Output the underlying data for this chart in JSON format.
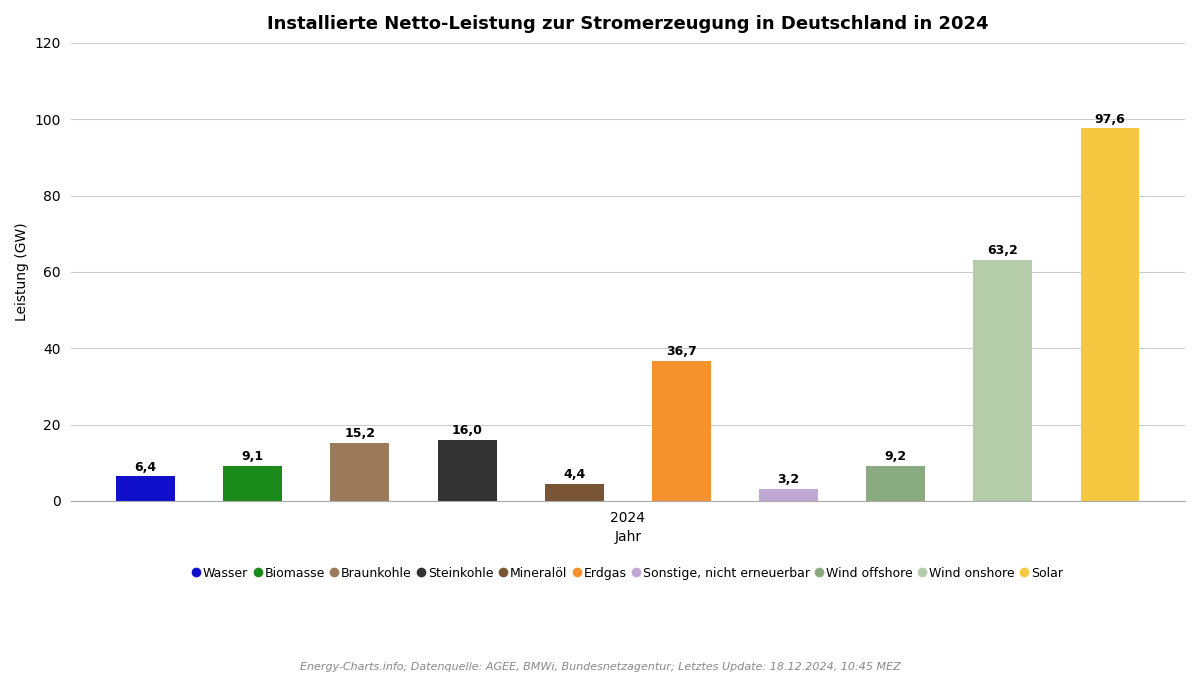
{
  "title": "Installierte Netto-Leistung zur Stromerzeugung in Deutschland in 2024",
  "xlabel": "Jahr",
  "ylabel": "Leistung (GW)",
  "xtick_label": "2024",
  "ylim": [
    0,
    120
  ],
  "yticks": [
    0,
    20,
    40,
    60,
    80,
    100,
    120
  ],
  "categories": [
    "Wasser",
    "Biomasse",
    "Braunkohle",
    "Steinkohle",
    "Mineralöl",
    "Erdgas",
    "Sonstige, nicht erneuerbar",
    "Wind offshore",
    "Wind onshore",
    "Solar"
  ],
  "values": [
    6.4,
    9.1,
    15.2,
    16.0,
    4.4,
    36.7,
    3.2,
    9.2,
    63.2,
    97.6
  ],
  "colors": [
    "#1010cc",
    "#1a8a1a",
    "#9a7a58",
    "#333333",
    "#7a5535",
    "#f5922e",
    "#c0a8d5",
    "#8aaa80",
    "#b5ccaa",
    "#f5c842"
  ],
  "bar_width": 0.55,
  "background_color": "#ffffff",
  "grid_color": "#cccccc",
  "title_fontsize": 13,
  "label_fontsize": 10,
  "tick_fontsize": 10,
  "value_fontsize": 9,
  "legend_fontsize": 9,
  "source_text": "Energy-Charts.info; Datenquelle: AGEE, BMWi, Bundesnetzagentur; Letztes Update: 18.12.2024, 10:45 MEZ"
}
